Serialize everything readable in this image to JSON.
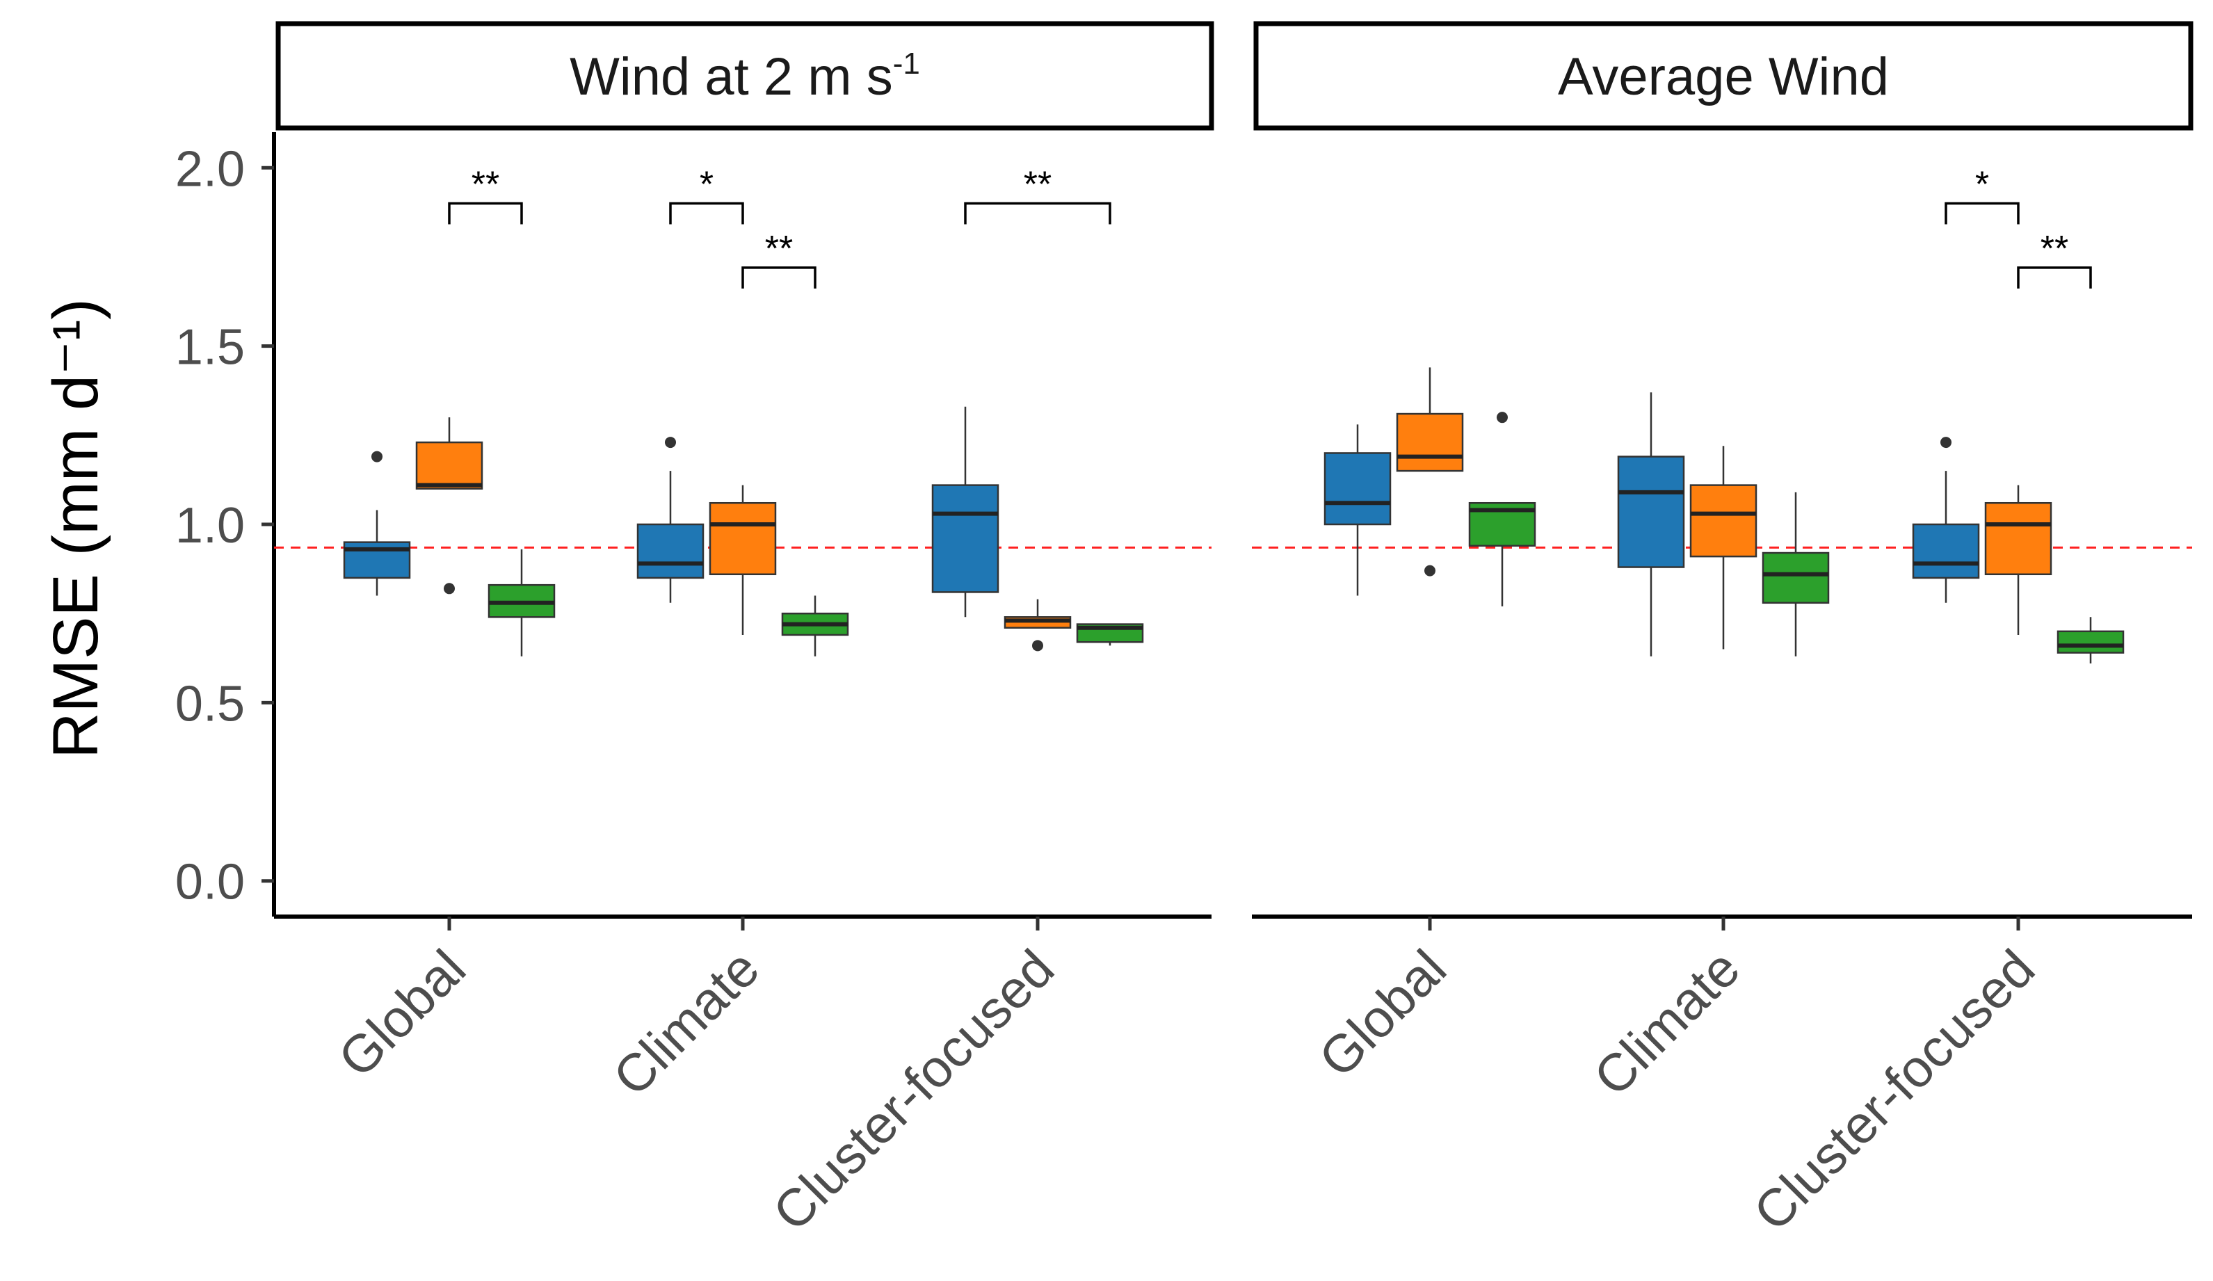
{
  "chart_data": {
    "type": "boxplot",
    "ylabel": "RMSE (mm d⁻¹)",
    "ylim": [
      -0.1,
      2.1
    ],
    "yticks": [
      0.0,
      0.5,
      1.0,
      1.5,
      2.0
    ],
    "ytick_labels": [
      "0.0",
      "0.5",
      "1.0",
      "1.5",
      "2.0"
    ],
    "reference_line": 0.935,
    "series_colors": [
      "#1f77b4",
      "#ff7f0e",
      "#2ca02c"
    ],
    "panels": [
      {
        "title_main": "Wind at 2 m s",
        "title_sup": "-1",
        "categories": [
          "Global",
          "Climate",
          "Cluster-focused"
        ],
        "groups": [
          [
            {
              "min": 0.8,
              "q1": 0.85,
              "median": 0.93,
              "q3": 0.95,
              "max": 1.04,
              "outliers": [
                1.19
              ]
            },
            {
              "min": 1.1,
              "q1": 1.1,
              "median": 1.11,
              "q3": 1.23,
              "max": 1.3,
              "outliers": [
                0.82
              ]
            },
            {
              "min": 0.63,
              "q1": 0.74,
              "median": 0.78,
              "q3": 0.83,
              "max": 0.93,
              "outliers": []
            }
          ],
          [
            {
              "min": 0.78,
              "q1": 0.85,
              "median": 0.89,
              "q3": 1.0,
              "max": 1.15,
              "outliers": [
                1.23
              ]
            },
            {
              "min": 0.69,
              "q1": 0.86,
              "median": 1.0,
              "q3": 1.06,
              "max": 1.11,
              "outliers": []
            },
            {
              "min": 0.63,
              "q1": 0.69,
              "median": 0.72,
              "q3": 0.75,
              "max": 0.8,
              "outliers": []
            }
          ],
          [
            {
              "min": 0.74,
              "q1": 0.81,
              "median": 1.03,
              "q3": 1.11,
              "max": 1.33,
              "outliers": []
            },
            {
              "min": 0.71,
              "q1": 0.71,
              "median": 0.73,
              "q3": 0.74,
              "max": 0.79,
              "outliers": [
                0.66
              ]
            },
            {
              "min": 0.66,
              "q1": 0.67,
              "median": 0.71,
              "q3": 0.72,
              "max": 0.72,
              "outliers": []
            }
          ]
        ],
        "significance": [
          {
            "label": "**",
            "group": 0,
            "from": 1,
            "to": 2,
            "y": 1.9
          },
          {
            "label": "*",
            "group": 1,
            "from": 0,
            "to": 1,
            "y": 1.9
          },
          {
            "label": "**",
            "group": 1,
            "from": 1,
            "to": 2,
            "y": 1.72
          },
          {
            "label": "**",
            "group": 2,
            "from": 0,
            "to": 2,
            "y": 1.9
          }
        ]
      },
      {
        "title_main": "Average Wind",
        "title_sup": "",
        "categories": [
          "Global",
          "Climate",
          "Cluster-focused"
        ],
        "groups": [
          [
            {
              "min": 0.8,
              "q1": 1.0,
              "median": 1.06,
              "q3": 1.2,
              "max": 1.28,
              "outliers": []
            },
            {
              "min": 1.15,
              "q1": 1.15,
              "median": 1.19,
              "q3": 1.31,
              "max": 1.44,
              "outliers": [
                0.87
              ]
            },
            {
              "min": 0.77,
              "q1": 0.94,
              "median": 1.04,
              "q3": 1.06,
              "max": 1.06,
              "outliers": [
                1.3
              ]
            }
          ],
          [
            {
              "min": 0.63,
              "q1": 0.88,
              "median": 1.09,
              "q3": 1.19,
              "max": 1.37,
              "outliers": []
            },
            {
              "min": 0.65,
              "q1": 0.91,
              "median": 1.03,
              "q3": 1.11,
              "max": 1.22,
              "outliers": []
            },
            {
              "min": 0.63,
              "q1": 0.78,
              "median": 0.86,
              "q3": 0.92,
              "max": 1.09,
              "outliers": []
            }
          ],
          [
            {
              "min": 0.78,
              "q1": 0.85,
              "median": 0.89,
              "q3": 1.0,
              "max": 1.15,
              "outliers": [
                1.23
              ]
            },
            {
              "min": 0.69,
              "q1": 0.86,
              "median": 1.0,
              "q3": 1.06,
              "max": 1.11,
              "outliers": []
            },
            {
              "min": 0.61,
              "q1": 0.64,
              "median": 0.66,
              "q3": 0.7,
              "max": 0.74,
              "outliers": []
            }
          ]
        ],
        "significance": [
          {
            "label": "*",
            "group": 2,
            "from": 0,
            "to": 1,
            "y": 1.9
          },
          {
            "label": "**",
            "group": 2,
            "from": 1,
            "to": 2,
            "y": 1.72
          }
        ]
      }
    ]
  }
}
